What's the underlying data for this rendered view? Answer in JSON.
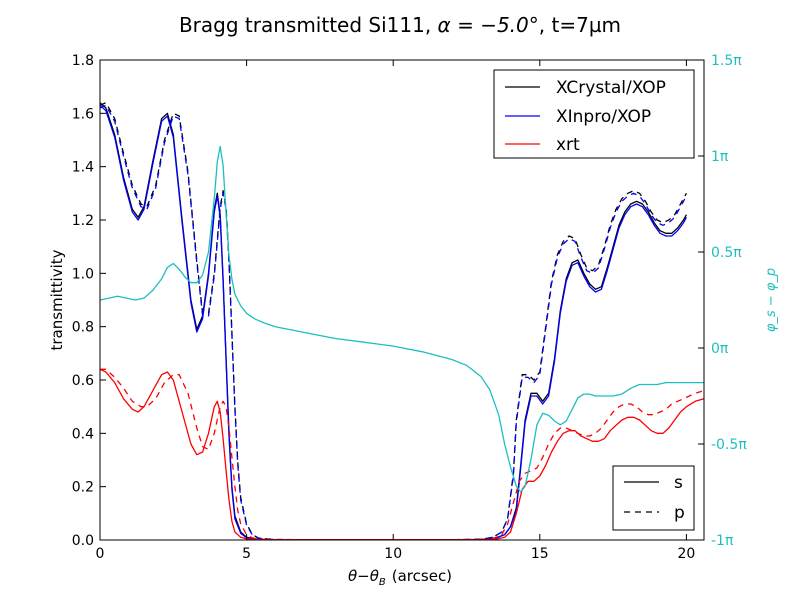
{
  "chart_data": {
    "type": "line",
    "title_prefix": "Bragg transmitted Si111, ",
    "title_alpha": "α = −5.0°",
    "title_suffix": ", t=7µm",
    "xlabel": "θ−θ_B  (arcsec)",
    "xlabel_parts": {
      "theta": "θ",
      "minus": "−",
      "theta_b": "θ",
      "sub": "B",
      "unit": "(arcsec)"
    },
    "ylabel": "transmittivity",
    "y2label": "φ_s − φ_p",
    "xlim": [
      0,
      20.6
    ],
    "ylim": [
      0.0,
      1.8
    ],
    "y2lim": [
      -1,
      1.5
    ],
    "x_ticks": [
      "0",
      "5",
      "10",
      "15",
      "20"
    ],
    "x_tick_values": [
      0,
      5,
      10,
      15,
      20
    ],
    "y_ticks": [
      "0.0",
      "0.2",
      "0.4",
      "0.6",
      "0.8",
      "1.0",
      "1.2",
      "1.4",
      "1.6",
      "1.8"
    ],
    "y_tick_values": [
      0.0,
      0.2,
      0.4,
      0.6,
      0.8,
      1.0,
      1.2,
      1.4,
      1.6,
      1.8
    ],
    "y2_ticks": [
      "-1π",
      "-0.5π",
      "0π",
      "0.5π",
      "1π",
      "1.5π"
    ],
    "y2_tick_values": [
      -1,
      -0.5,
      0,
      0.5,
      1,
      1.5
    ],
    "legend_codes": {
      "position": "top-right",
      "entries": [
        {
          "label": "XCrystal/XOP",
          "color": "#000000"
        },
        {
          "label": "XInpro/XOP",
          "color": "#0000ff"
        },
        {
          "label": "xrt",
          "color": "#ff0000"
        }
      ]
    },
    "legend_polarization": {
      "position": "bottom-right",
      "entries": [
        {
          "label": "s",
          "dash": "solid"
        },
        {
          "label": "p",
          "dash": "dashed"
        }
      ]
    },
    "colors": {
      "xcrystal": "#000000",
      "xinpro": "#0000ff",
      "xrt": "#ff0000",
      "phase": "#1ebfbf"
    },
    "series": [
      {
        "code": "XCrystal/XOP",
        "polarization": "s",
        "color": "#000000",
        "dash": "solid",
        "x": [
          0,
          0.2,
          0.5,
          0.8,
          1.1,
          1.3,
          1.5,
          1.8,
          2.1,
          2.3,
          2.5,
          2.8,
          3.1,
          3.3,
          3.5,
          3.7,
          3.9,
          4.0,
          4.1,
          4.2,
          4.3,
          4.4,
          4.5,
          4.6,
          4.8,
          5.0,
          5.3,
          5.6,
          6,
          7,
          8,
          9,
          10,
          11,
          12,
          13,
          13.5,
          13.8,
          14.0,
          14.2,
          14.35,
          14.5,
          14.7,
          14.9,
          15.1,
          15.3,
          15.5,
          15.7,
          15.9,
          16.1,
          16.3,
          16.5,
          16.7,
          16.9,
          17.1,
          17.3,
          17.5,
          17.7,
          17.9,
          18.1,
          18.3,
          18.5,
          18.7,
          18.9,
          19.1,
          19.3,
          19.5,
          19.7,
          19.9,
          20.0
        ],
        "y": [
          1.64,
          1.62,
          1.52,
          1.36,
          1.24,
          1.21,
          1.25,
          1.42,
          1.58,
          1.6,
          1.52,
          1.2,
          0.9,
          0.79,
          0.84,
          1.0,
          1.24,
          1.3,
          1.22,
          0.98,
          0.68,
          0.4,
          0.2,
          0.09,
          0.03,
          0.01,
          0.004,
          0.002,
          0.001,
          0.001,
          0.001,
          0.001,
          0.001,
          0.001,
          0.001,
          0.002,
          0.008,
          0.02,
          0.05,
          0.12,
          0.28,
          0.45,
          0.55,
          0.55,
          0.52,
          0.55,
          0.68,
          0.86,
          0.98,
          1.04,
          1.05,
          1.0,
          0.96,
          0.94,
          0.95,
          1.02,
          1.1,
          1.18,
          1.23,
          1.26,
          1.27,
          1.26,
          1.23,
          1.19,
          1.16,
          1.15,
          1.15,
          1.17,
          1.2,
          1.22
        ]
      },
      {
        "code": "XCrystal/XOP",
        "polarization": "p",
        "color": "#000000",
        "dash": "dashed",
        "x": [
          0,
          0.2,
          0.5,
          0.8,
          1.1,
          1.4,
          1.6,
          1.9,
          2.2,
          2.5,
          2.7,
          3.0,
          3.3,
          3.5,
          3.7,
          3.9,
          4.1,
          4.2,
          4.3,
          4.4,
          4.5,
          4.6,
          4.7,
          4.8,
          5.0,
          5.2,
          5.4,
          5.7,
          6,
          7,
          8,
          9,
          10,
          11,
          12,
          13,
          13.4,
          13.7,
          13.9,
          14.1,
          14.2,
          14.4,
          14.6,
          14.8,
          15.0,
          15.2,
          15.4,
          15.6,
          15.8,
          16.0,
          16.2,
          16.4,
          16.6,
          16.8,
          17.0,
          17.2,
          17.4,
          17.6,
          17.8,
          18.0,
          18.2,
          18.4,
          18.6,
          18.8,
          19.0,
          19.2,
          19.4,
          19.6,
          19.8,
          20.0
        ],
        "y": [
          1.63,
          1.64,
          1.58,
          1.45,
          1.33,
          1.26,
          1.25,
          1.33,
          1.5,
          1.6,
          1.59,
          1.38,
          1.05,
          0.85,
          0.85,
          1.0,
          1.25,
          1.31,
          1.25,
          1.05,
          0.78,
          0.5,
          0.29,
          0.16,
          0.06,
          0.02,
          0.008,
          0.004,
          0.002,
          0.001,
          0.001,
          0.001,
          0.001,
          0.001,
          0.001,
          0.003,
          0.01,
          0.03,
          0.08,
          0.25,
          0.45,
          0.62,
          0.62,
          0.6,
          0.63,
          0.8,
          0.97,
          1.07,
          1.12,
          1.14,
          1.13,
          1.07,
          1.02,
          1.01,
          1.03,
          1.1,
          1.18,
          1.24,
          1.28,
          1.3,
          1.31,
          1.3,
          1.27,
          1.23,
          1.2,
          1.19,
          1.2,
          1.22,
          1.26,
          1.3
        ]
      },
      {
        "code": "XInpro/XOP",
        "polarization": "s",
        "color": "#0000ff",
        "dash": "solid",
        "x": [
          0,
          0.2,
          0.5,
          0.8,
          1.1,
          1.3,
          1.5,
          1.8,
          2.1,
          2.3,
          2.5,
          2.8,
          3.1,
          3.3,
          3.5,
          3.7,
          3.9,
          4.0,
          4.1,
          4.2,
          4.3,
          4.4,
          4.5,
          4.6,
          4.8,
          5.0,
          5.3,
          5.6,
          6,
          7,
          8,
          9,
          10,
          11,
          12,
          13,
          13.5,
          13.8,
          14.0,
          14.2,
          14.35,
          14.5,
          14.7,
          14.9,
          15.1,
          15.3,
          15.5,
          15.7,
          15.9,
          16.1,
          16.3,
          16.5,
          16.7,
          16.9,
          17.1,
          17.3,
          17.5,
          17.7,
          17.9,
          18.1,
          18.3,
          18.5,
          18.7,
          18.9,
          19.1,
          19.3,
          19.5,
          19.7,
          19.9,
          20.0
        ],
        "y": [
          1.63,
          1.61,
          1.51,
          1.35,
          1.23,
          1.2,
          1.24,
          1.41,
          1.57,
          1.59,
          1.51,
          1.19,
          0.89,
          0.78,
          0.83,
          0.99,
          1.23,
          1.29,
          1.21,
          0.97,
          0.67,
          0.39,
          0.19,
          0.08,
          0.025,
          0.008,
          0.003,
          0.002,
          0.001,
          0.001,
          0.001,
          0.001,
          0.001,
          0.001,
          0.001,
          0.002,
          0.007,
          0.02,
          0.05,
          0.11,
          0.27,
          0.44,
          0.54,
          0.54,
          0.51,
          0.54,
          0.67,
          0.85,
          0.97,
          1.03,
          1.04,
          0.99,
          0.95,
          0.93,
          0.94,
          1.01,
          1.09,
          1.17,
          1.22,
          1.25,
          1.26,
          1.25,
          1.22,
          1.18,
          1.15,
          1.14,
          1.14,
          1.16,
          1.19,
          1.21
        ]
      },
      {
        "code": "XInpro/XOP",
        "polarization": "p",
        "color": "#0000ff",
        "dash": "dashed",
        "x": [
          0,
          0.2,
          0.5,
          0.8,
          1.1,
          1.4,
          1.6,
          1.9,
          2.2,
          2.5,
          2.7,
          3.0,
          3.3,
          3.5,
          3.7,
          3.9,
          4.1,
          4.2,
          4.3,
          4.4,
          4.5,
          4.6,
          4.7,
          4.8,
          5.0,
          5.2,
          5.4,
          5.7,
          6,
          7,
          8,
          9,
          10,
          11,
          12,
          13,
          13.4,
          13.7,
          13.9,
          14.1,
          14.2,
          14.4,
          14.6,
          14.8,
          15.0,
          15.2,
          15.4,
          15.6,
          15.8,
          16.0,
          16.2,
          16.4,
          16.6,
          16.8,
          17.0,
          17.2,
          17.4,
          17.6,
          17.8,
          18.0,
          18.2,
          18.4,
          18.6,
          18.8,
          19.0,
          19.2,
          19.4,
          19.6,
          19.8,
          20.0
        ],
        "y": [
          1.62,
          1.63,
          1.57,
          1.44,
          1.32,
          1.25,
          1.24,
          1.32,
          1.49,
          1.59,
          1.58,
          1.37,
          1.04,
          0.84,
          0.84,
          0.99,
          1.24,
          1.3,
          1.24,
          1.04,
          0.77,
          0.49,
          0.28,
          0.15,
          0.055,
          0.018,
          0.007,
          0.003,
          0.002,
          0.001,
          0.001,
          0.001,
          0.001,
          0.001,
          0.001,
          0.003,
          0.01,
          0.03,
          0.08,
          0.24,
          0.44,
          0.61,
          0.61,
          0.59,
          0.62,
          0.79,
          0.96,
          1.06,
          1.11,
          1.13,
          1.12,
          1.06,
          1.01,
          1.0,
          1.02,
          1.09,
          1.17,
          1.23,
          1.27,
          1.29,
          1.3,
          1.29,
          1.26,
          1.22,
          1.19,
          1.18,
          1.19,
          1.21,
          1.25,
          1.29
        ]
      },
      {
        "code": "xrt",
        "polarization": "s",
        "color": "#ff0000",
        "dash": "solid",
        "x": [
          0,
          0.2,
          0.5,
          0.8,
          1.1,
          1.3,
          1.5,
          1.8,
          2.1,
          2.3,
          2.5,
          2.8,
          3.1,
          3.3,
          3.5,
          3.7,
          3.9,
          4.0,
          4.1,
          4.2,
          4.3,
          4.4,
          4.5,
          4.6,
          4.8,
          5.0,
          5.3,
          5.6,
          6,
          7,
          8,
          9,
          10,
          11,
          12,
          13,
          13.5,
          13.8,
          14.0,
          14.2,
          14.4,
          14.6,
          14.8,
          15.0,
          15.2,
          15.4,
          15.6,
          15.8,
          16.0,
          16.2,
          16.4,
          16.6,
          16.8,
          17.0,
          17.2,
          17.4,
          17.6,
          17.8,
          18.0,
          18.2,
          18.4,
          18.6,
          18.8,
          19.0,
          19.2,
          19.4,
          19.6,
          19.8,
          20.0,
          20.3,
          20.6
        ],
        "y": [
          0.64,
          0.63,
          0.59,
          0.53,
          0.49,
          0.48,
          0.5,
          0.56,
          0.62,
          0.63,
          0.6,
          0.48,
          0.36,
          0.32,
          0.33,
          0.4,
          0.5,
          0.52,
          0.48,
          0.38,
          0.26,
          0.15,
          0.07,
          0.03,
          0.01,
          0.004,
          0.002,
          0.001,
          0.001,
          0.001,
          0.001,
          0.001,
          0.001,
          0.001,
          0.001,
          0.001,
          0.003,
          0.01,
          0.03,
          0.1,
          0.19,
          0.22,
          0.22,
          0.24,
          0.28,
          0.33,
          0.37,
          0.4,
          0.41,
          0.41,
          0.39,
          0.38,
          0.37,
          0.37,
          0.38,
          0.41,
          0.43,
          0.45,
          0.46,
          0.46,
          0.45,
          0.43,
          0.41,
          0.4,
          0.4,
          0.42,
          0.45,
          0.48,
          0.5,
          0.52,
          0.53
        ]
      },
      {
        "code": "xrt",
        "polarization": "p",
        "color": "#ff0000",
        "dash": "dashed",
        "x": [
          0,
          0.2,
          0.5,
          0.8,
          1.1,
          1.4,
          1.6,
          1.9,
          2.2,
          2.5,
          2.7,
          3.0,
          3.3,
          3.5,
          3.7,
          3.9,
          4.1,
          4.2,
          4.3,
          4.4,
          4.5,
          4.6,
          4.7,
          4.8,
          5.0,
          5.2,
          5.5,
          6,
          7,
          8,
          9,
          10,
          11,
          12,
          13,
          13.4,
          13.7,
          13.9,
          14.1,
          14.3,
          14.5,
          14.7,
          14.9,
          15.1,
          15.3,
          15.5,
          15.7,
          15.9,
          16.1,
          16.3,
          16.5,
          16.7,
          16.9,
          17.1,
          17.3,
          17.5,
          17.7,
          17.9,
          18.1,
          18.3,
          18.5,
          18.7,
          18.9,
          19.1,
          19.3,
          19.5,
          19.7,
          19.9,
          20.1,
          20.3,
          20.6
        ],
        "y": [
          0.64,
          0.64,
          0.61,
          0.57,
          0.52,
          0.5,
          0.5,
          0.53,
          0.59,
          0.62,
          0.62,
          0.55,
          0.42,
          0.35,
          0.34,
          0.4,
          0.5,
          0.52,
          0.5,
          0.42,
          0.31,
          0.2,
          0.11,
          0.06,
          0.02,
          0.008,
          0.003,
          0.001,
          0.001,
          0.001,
          0.001,
          0.001,
          0.001,
          0.001,
          0.002,
          0.005,
          0.02,
          0.06,
          0.14,
          0.22,
          0.25,
          0.26,
          0.27,
          0.31,
          0.36,
          0.4,
          0.42,
          0.42,
          0.41,
          0.4,
          0.39,
          0.39,
          0.4,
          0.42,
          0.45,
          0.48,
          0.5,
          0.51,
          0.51,
          0.5,
          0.48,
          0.47,
          0.47,
          0.48,
          0.49,
          0.51,
          0.52,
          0.53,
          0.54,
          0.55,
          0.56
        ]
      },
      {
        "code": "phase",
        "polarization": "s-p",
        "color": "#1ebfbf",
        "dash": "solid",
        "axis": "right",
        "x": [
          0,
          0.3,
          0.6,
          0.9,
          1.2,
          1.5,
          1.8,
          2.1,
          2.3,
          2.5,
          2.7,
          2.9,
          3.1,
          3.3,
          3.5,
          3.7,
          3.9,
          4.0,
          4.1,
          4.2,
          4.3,
          4.4,
          4.5,
          4.6,
          4.8,
          5.0,
          5.3,
          5.6,
          6,
          7,
          8,
          9,
          10,
          11,
          12,
          12.5,
          13,
          13.3,
          13.6,
          13.8,
          14.0,
          14.2,
          14.35,
          14.5,
          14.7,
          14.9,
          15.1,
          15.3,
          15.5,
          15.7,
          15.9,
          16.1,
          16.3,
          16.5,
          16.7,
          16.9,
          17.1,
          17.3,
          17.5,
          17.8,
          18.1,
          18.4,
          18.7,
          19.0,
          19.3,
          19.6,
          19.9,
          20.2,
          20.6
        ],
        "y": [
          0.25,
          0.26,
          0.27,
          0.26,
          0.25,
          0.26,
          0.3,
          0.36,
          0.42,
          0.44,
          0.41,
          0.37,
          0.34,
          0.34,
          0.38,
          0.5,
          0.78,
          0.97,
          1.05,
          0.95,
          0.7,
          0.48,
          0.36,
          0.28,
          0.22,
          0.18,
          0.15,
          0.13,
          0.11,
          0.08,
          0.05,
          0.03,
          0.01,
          -0.02,
          -0.06,
          -0.09,
          -0.15,
          -0.22,
          -0.35,
          -0.5,
          -0.62,
          -0.72,
          -0.75,
          -0.72,
          -0.58,
          -0.4,
          -0.34,
          -0.35,
          -0.38,
          -0.4,
          -0.38,
          -0.32,
          -0.26,
          -0.24,
          -0.24,
          -0.25,
          -0.25,
          -0.25,
          -0.25,
          -0.24,
          -0.21,
          -0.19,
          -0.19,
          -0.19,
          -0.18,
          -0.18,
          -0.18,
          -0.18,
          -0.18
        ]
      }
    ]
  }
}
